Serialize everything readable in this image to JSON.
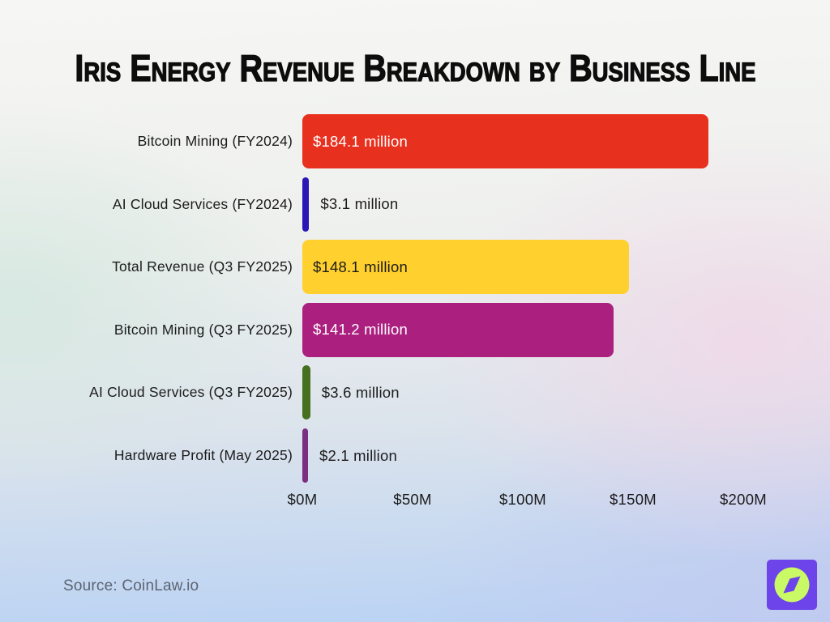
{
  "chart_data": {
    "type": "bar",
    "orientation": "horizontal",
    "title": "Iris Energy Revenue Breakdown by Business Line",
    "categories": [
      "Bitcoin Mining (FY2024)",
      "AI Cloud Services (FY2024)",
      "Total Revenue (Q3 FY2025)",
      "Bitcoin Mining (Q3 FY2025)",
      "AI Cloud Services (Q3 FY2025)",
      "Hardware Profit (May 2025)"
    ],
    "values": [
      184.1,
      3.1,
      148.1,
      141.2,
      3.6,
      2.1
    ],
    "value_labels": [
      "$184.1 million",
      "$3.1 million",
      "$148.1 million",
      "$141.2 million",
      "$3.6 million",
      "$2.1 million"
    ],
    "bar_colors": [
      "#e8301f",
      "#2a17b5",
      "#ffd02e",
      "#ab1f7f",
      "#44701f",
      "#7a2f82"
    ],
    "value_text_colors": [
      "#ffffff",
      "#1c1c1c",
      "#1c1c1c",
      "#ffffff",
      "#1c1c1c",
      "#1c1c1c"
    ],
    "label_placement": [
      "inside",
      "outside",
      "inside",
      "inside",
      "outside",
      "outside"
    ],
    "xlabel": "",
    "ylabel": "",
    "x_ticks": [
      "$0M",
      "$50M",
      "$100M",
      "$150M",
      "$200M"
    ],
    "x_tick_values": [
      0,
      50,
      100,
      150,
      200
    ],
    "xlim": [
      0,
      200
    ],
    "unit": "USD millions",
    "grid": false,
    "legend": false
  },
  "footer": {
    "source": "Source: CoinLaw.io"
  },
  "logo": {
    "name": "coinlaw-compass-logo",
    "bg_color": "#6c44ea",
    "circle_color": "#c9f964",
    "needle_color": "#6c44ea"
  }
}
